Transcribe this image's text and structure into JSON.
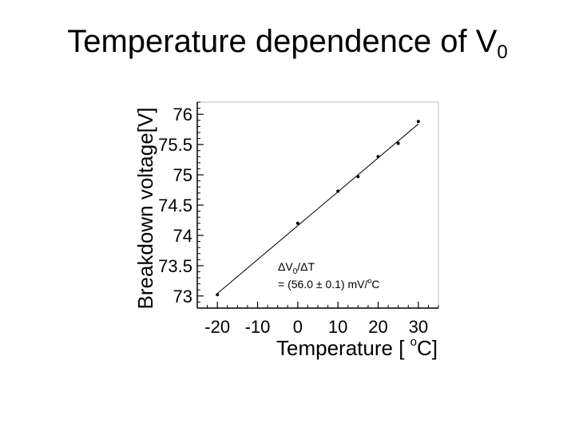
{
  "slide": {
    "title_main": "Temperature dependence of V",
    "title_sub": "0"
  },
  "chart_data": {
    "type": "scatter",
    "xlabel": "Temperature [ °C]",
    "xlabel_main": "Temperature [ ",
    "xlabel_sup": "o",
    "xlabel_end": "C]",
    "ylabel": "Breakdown voltage[V]",
    "xlim": [
      -25,
      35
    ],
    "ylim": [
      72.8,
      76.2
    ],
    "xticks": [
      -20,
      -10,
      0,
      10,
      20,
      30
    ],
    "xtick_labels": [
      "-20",
      "-10",
      "0",
      "10",
      "20",
      "30"
    ],
    "yticks": [
      73,
      73.5,
      74,
      74.5,
      75,
      75.5,
      76
    ],
    "ytick_labels": [
      "73",
      "73.5",
      "74",
      "74.5",
      "75",
      "75.5",
      "76"
    ],
    "points": [
      {
        "x": -20,
        "y": 73.02
      },
      {
        "x": 0,
        "y": 74.2
      },
      {
        "x": 10,
        "y": 74.73
      },
      {
        "x": 15,
        "y": 74.97
      },
      {
        "x": 20,
        "y": 75.3
      },
      {
        "x": 25,
        "y": 75.52
      },
      {
        "x": 30,
        "y": 75.88
      }
    ],
    "fit": {
      "slope": 0.056,
      "intercept": 74.16
    },
    "annotation": {
      "line1_delta1": "Δ",
      "line1_v": "V",
      "line1_sub": "0",
      "line1_rest": "/ΔT",
      "line2_prefix": "= (56.0 ± 0.1) mV/",
      "line2_sup": "o",
      "line2_suffix": "C"
    },
    "grid": false
  }
}
